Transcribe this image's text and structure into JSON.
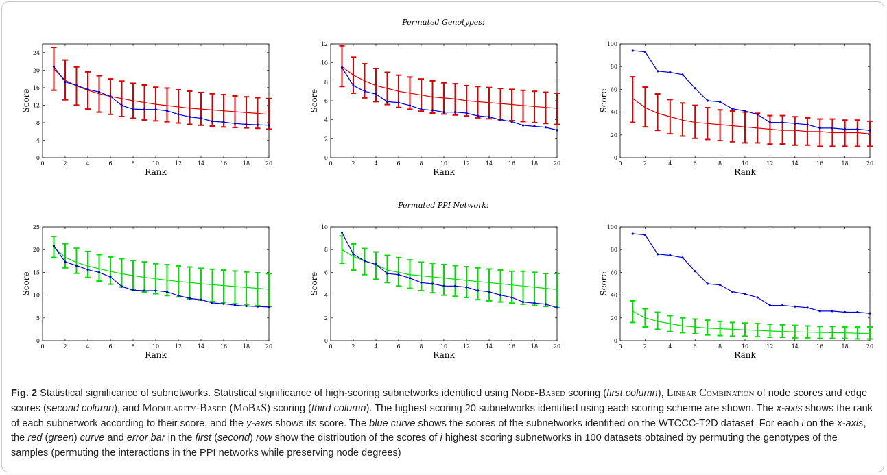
{
  "row_titles": [
    "Permuted Genotypes:",
    "Permuted PPI Network:"
  ],
  "colors": {
    "observed": "#0000dd",
    "permuted_genotypes": "#dd0000",
    "permuted_ppi": "#00dd00"
  },
  "chart_data": [
    {
      "type": "line",
      "row": 0,
      "col": 0,
      "xlabel": "Rank",
      "ylabel": "Score",
      "xlim": [
        0,
        20
      ],
      "ylim": [
        0,
        26
      ],
      "xticks": [
        0,
        2,
        4,
        6,
        8,
        10,
        12,
        14,
        16,
        18,
        20
      ],
      "yticks": [
        0,
        4,
        8,
        12,
        16,
        20,
        24
      ],
      "x": [
        1,
        2,
        3,
        4,
        5,
        6,
        7,
        8,
        9,
        10,
        11,
        12,
        13,
        14,
        15,
        16,
        17,
        18,
        19,
        20
      ],
      "series": [
        {
          "role": "observed",
          "color": "#0000dd",
          "markers": true,
          "values": [
            20.8,
            17.3,
            16.5,
            15.6,
            15.0,
            14.0,
            11.9,
            11.1,
            11.0,
            11.0,
            10.7,
            9.9,
            9.3,
            9.0,
            8.3,
            8.1,
            7.8,
            7.6,
            7.5,
            7.4
          ]
        },
        {
          "role": "permuted",
          "color": "#dd0000",
          "values": [
            20.3,
            17.7,
            16.4,
            15.4,
            14.6,
            14.0,
            13.5,
            13.0,
            12.6,
            12.2,
            11.9,
            11.6,
            11.3,
            11.1,
            10.9,
            10.7,
            10.5,
            10.3,
            10.1,
            9.9
          ],
          "err_low": [
            15.4,
            13.2,
            12.0,
            11.1,
            10.4,
            9.9,
            9.4,
            9.0,
            8.6,
            8.4,
            8.2,
            7.9,
            7.6,
            7.4,
            7.2,
            7.0,
            6.9,
            6.8,
            6.7,
            6.5
          ],
          "err_high": [
            25.2,
            22.3,
            20.7,
            19.6,
            18.7,
            18.0,
            17.5,
            17.0,
            16.6,
            16.1,
            15.9,
            15.5,
            15.2,
            14.9,
            14.6,
            14.4,
            14.1,
            13.9,
            13.7,
            13.5
          ]
        }
      ]
    },
    {
      "type": "line",
      "row": 0,
      "col": 1,
      "xlabel": "Rank",
      "ylabel": "Score",
      "xlim": [
        0,
        20
      ],
      "ylim": [
        0,
        12
      ],
      "xticks": [
        0,
        2,
        4,
        6,
        8,
        10,
        12,
        14,
        16,
        18,
        20
      ],
      "yticks": [
        0,
        2,
        4,
        6,
        8,
        10,
        12
      ],
      "x": [
        1,
        2,
        3,
        4,
        5,
        6,
        7,
        8,
        9,
        10,
        11,
        12,
        13,
        14,
        15,
        16,
        17,
        18,
        19,
        20
      ],
      "series": [
        {
          "role": "observed",
          "color": "#0000dd",
          "markers": true,
          "values": [
            9.5,
            7.6,
            7.0,
            6.7,
            5.9,
            5.8,
            5.5,
            5.1,
            5.0,
            4.8,
            4.8,
            4.7,
            4.4,
            4.3,
            4.0,
            3.8,
            3.4,
            3.3,
            3.2,
            2.9
          ]
        },
        {
          "role": "permuted",
          "color": "#dd0000",
          "values": [
            9.6,
            8.7,
            8.1,
            7.6,
            7.3,
            7.0,
            6.8,
            6.6,
            6.4,
            6.3,
            6.2,
            6.0,
            5.9,
            5.8,
            5.7,
            5.6,
            5.5,
            5.4,
            5.3,
            5.2
          ],
          "err_low": [
            7.5,
            6.8,
            6.3,
            5.9,
            5.6,
            5.3,
            5.1,
            4.9,
            4.7,
            4.6,
            4.5,
            4.4,
            4.2,
            4.1,
            4.0,
            3.9,
            3.8,
            3.7,
            3.6,
            3.5
          ],
          "err_high": [
            11.8,
            10.6,
            9.9,
            9.4,
            9.0,
            8.7,
            8.5,
            8.3,
            8.1,
            7.9,
            7.8,
            7.6,
            7.5,
            7.4,
            7.3,
            7.2,
            7.1,
            7.0,
            6.9,
            6.8
          ]
        }
      ]
    },
    {
      "type": "line",
      "row": 0,
      "col": 2,
      "xlabel": "Rank",
      "ylabel": "Score",
      "xlim": [
        0,
        20
      ],
      "ylim": [
        0,
        100
      ],
      "xticks": [
        0,
        2,
        4,
        6,
        8,
        10,
        12,
        14,
        16,
        18,
        20
      ],
      "yticks": [
        0,
        20,
        40,
        60,
        80,
        100
      ],
      "x": [
        1,
        2,
        3,
        4,
        5,
        6,
        7,
        8,
        9,
        10,
        11,
        12,
        13,
        14,
        15,
        16,
        17,
        18,
        19,
        20
      ],
      "series": [
        {
          "role": "observed",
          "color": "#0000dd",
          "markers": true,
          "values": [
            94,
            93,
            76,
            75,
            73,
            61,
            50,
            49,
            43,
            41,
            38,
            31,
            31,
            30,
            29,
            26,
            26,
            25,
            25,
            24
          ]
        },
        {
          "role": "permuted",
          "color": "#dd0000",
          "values": [
            52,
            44,
            39,
            36,
            33,
            31,
            30,
            29,
            28,
            27,
            26,
            25,
            24,
            24,
            23,
            23,
            22,
            22,
            22,
            21
          ],
          "err_low": [
            31,
            27,
            24,
            21,
            19,
            17,
            16,
            15,
            14,
            13,
            13,
            12,
            12,
            11,
            11,
            10,
            10,
            10,
            10,
            10
          ],
          "err_high": [
            71,
            62,
            56,
            51,
            48,
            46,
            44,
            42,
            41,
            40,
            39,
            37,
            37,
            36,
            35,
            34,
            34,
            33,
            33,
            32
          ]
        }
      ]
    },
    {
      "type": "line",
      "row": 1,
      "col": 0,
      "xlabel": "Rank",
      "ylabel": "Score",
      "xlim": [
        0,
        20
      ],
      "ylim": [
        0,
        25
      ],
      "xticks": [
        0,
        2,
        4,
        6,
        8,
        10,
        12,
        14,
        16,
        18,
        20
      ],
      "yticks": [
        0,
        5,
        10,
        15,
        20,
        25
      ],
      "x": [
        1,
        2,
        3,
        4,
        5,
        6,
        7,
        8,
        9,
        10,
        11,
        12,
        13,
        14,
        15,
        16,
        17,
        18,
        19,
        20
      ],
      "series": [
        {
          "role": "observed",
          "color": "#0000dd",
          "markers": true,
          "values": [
            20.8,
            17.3,
            16.5,
            15.6,
            15.0,
            14.0,
            11.9,
            11.1,
            11.0,
            11.0,
            10.7,
            9.9,
            9.3,
            9.0,
            8.3,
            8.1,
            7.8,
            7.6,
            7.5,
            7.4
          ]
        },
        {
          "role": "permuted",
          "color": "#00dd00",
          "values": [
            20.5,
            18.3,
            17.2,
            16.4,
            15.8,
            15.2,
            14.7,
            14.3,
            13.9,
            13.6,
            13.3,
            13.0,
            12.8,
            12.5,
            12.3,
            12.1,
            11.9,
            11.7,
            11.5,
            11.3
          ],
          "err_low": [
            18.3,
            16.0,
            14.8,
            13.9,
            13.1,
            12.4,
            11.8,
            11.2,
            10.7,
            10.3,
            9.9,
            9.6,
            9.2,
            8.9,
            8.6,
            8.4,
            8.1,
            7.9,
            7.7,
            7.5
          ],
          "err_high": [
            22.9,
            21.3,
            20.3,
            19.6,
            18.9,
            18.4,
            18.0,
            17.6,
            17.3,
            16.9,
            16.7,
            16.4,
            16.2,
            15.9,
            15.7,
            15.5,
            15.3,
            15.1,
            14.9,
            14.7
          ]
        }
      ]
    },
    {
      "type": "line",
      "row": 1,
      "col": 1,
      "xlabel": "Rank",
      "ylabel": "Score",
      "xlim": [
        0,
        20
      ],
      "ylim": [
        0,
        10
      ],
      "xticks": [
        0,
        2,
        4,
        6,
        8,
        10,
        12,
        14,
        16,
        18,
        20
      ],
      "yticks": [
        0,
        2,
        4,
        6,
        8,
        10
      ],
      "x": [
        1,
        2,
        3,
        4,
        5,
        6,
        7,
        8,
        9,
        10,
        11,
        12,
        13,
        14,
        15,
        16,
        17,
        18,
        19,
        20
      ],
      "series": [
        {
          "role": "observed",
          "color": "#0000dd",
          "markers": true,
          "values": [
            9.5,
            7.6,
            7.0,
            6.7,
            5.9,
            5.8,
            5.5,
            5.1,
            5.0,
            4.8,
            4.8,
            4.7,
            4.4,
            4.3,
            4.0,
            3.8,
            3.4,
            3.3,
            3.2,
            2.9
          ]
        },
        {
          "role": "permuted",
          "color": "#00dd00",
          "values": [
            8.0,
            7.4,
            7.0,
            6.7,
            6.2,
            6.0,
            5.8,
            5.7,
            5.6,
            5.5,
            5.4,
            5.3,
            5.2,
            5.1,
            5.0,
            4.9,
            4.8,
            4.7,
            4.6,
            4.5
          ],
          "err_low": [
            6.8,
            6.2,
            5.8,
            5.4,
            5.1,
            4.8,
            4.6,
            4.4,
            4.2,
            4.0,
            3.9,
            3.8,
            3.6,
            3.5,
            3.4,
            3.3,
            3.2,
            3.1,
            3.0,
            2.9
          ],
          "err_high": [
            9.2,
            8.5,
            8.1,
            7.8,
            7.5,
            7.3,
            7.1,
            6.9,
            6.8,
            6.7,
            6.6,
            6.5,
            6.4,
            6.3,
            6.2,
            6.1,
            6.1,
            6.0,
            5.9,
            5.9
          ]
        }
      ]
    },
    {
      "type": "line",
      "row": 1,
      "col": 2,
      "xlabel": "Rank",
      "ylabel": "Score",
      "xlim": [
        0,
        20
      ],
      "ylim": [
        0,
        100
      ],
      "xticks": [
        0,
        2,
        4,
        6,
        8,
        10,
        12,
        14,
        16,
        18,
        20
      ],
      "yticks": [
        0,
        20,
        40,
        60,
        80,
        100
      ],
      "x": [
        1,
        2,
        3,
        4,
        5,
        6,
        7,
        8,
        9,
        10,
        11,
        12,
        13,
        14,
        15,
        16,
        17,
        18,
        19,
        20
      ],
      "series": [
        {
          "role": "observed",
          "color": "#0000dd",
          "markers": true,
          "values": [
            94,
            93,
            76,
            75,
            73,
            61,
            50,
            49,
            43,
            41,
            38,
            31,
            31,
            30,
            29,
            26,
            26,
            25,
            25,
            24
          ]
        },
        {
          "role": "permuted",
          "color": "#00dd00",
          "values": [
            26,
            20,
            17,
            15,
            13,
            12,
            11,
            10.5,
            10,
            9.5,
            9,
            8.5,
            8,
            7.8,
            7.5,
            7.2,
            7,
            6.8,
            6.5,
            6.3
          ],
          "err_low": [
            16,
            12,
            10,
            8,
            7,
            6,
            5,
            4.5,
            4,
            4,
            3.5,
            3,
            3,
            2.5,
            2.5,
            2,
            2,
            2,
            1.5,
            1.5
          ],
          "err_high": [
            35,
            28,
            25,
            22,
            20,
            19,
            18,
            17,
            16,
            15.5,
            15,
            14.5,
            14,
            13.5,
            13,
            12.5,
            12.5,
            12,
            12,
            12
          ]
        }
      ]
    }
  ],
  "caption": {
    "fig_label": "Fig. 2",
    "s1": " Statistical significance of subnetworks. Statistical significance of high-scoring subnetworks identified using ",
    "sc1": "Node-Based",
    "s2": " scoring (",
    "i1": "first column",
    "s3": "), ",
    "sc2": "Linear Combination",
    "s4": " of node scores and edge scores (",
    "i2": "second column",
    "s5": "), and ",
    "sc3": "Modularity-Based",
    "s6": " (",
    "sc4": "MoBaS",
    "s7": ") scoring (",
    "i3": "third column",
    "s8": "). The highest scoring 20 subnetworks identified using each scoring scheme are shown. The ",
    "i4": "x-axis",
    "s9": " shows the rank of each subnetwork according to their score, and the ",
    "i5": "y-axis",
    "s10": " shows its score. The ",
    "i6": "blue curve",
    "s11": " shows the scores of the subnetworks identified on the WTCCC-T2D dataset. For each ",
    "i7": "i",
    "s12": " on the ",
    "i8": "x-axis",
    "s13": ", the ",
    "i9": "red",
    "s14": " (",
    "i10": "green",
    "s15": ") ",
    "i11": "curve",
    "s16": " and ",
    "i12": "error bar",
    "s17": " in the ",
    "i13": "first",
    "s18": " (",
    "i14": "second",
    "s19": ") ",
    "i15": "row",
    "s20": " show the distribution of the scores of ",
    "i16": "i",
    "s21": " highest scoring subnetworks in 100 datasets obtained by permuting the genotypes of the samples (permuting the interactions in the PPI networks while preserving node degrees)"
  }
}
